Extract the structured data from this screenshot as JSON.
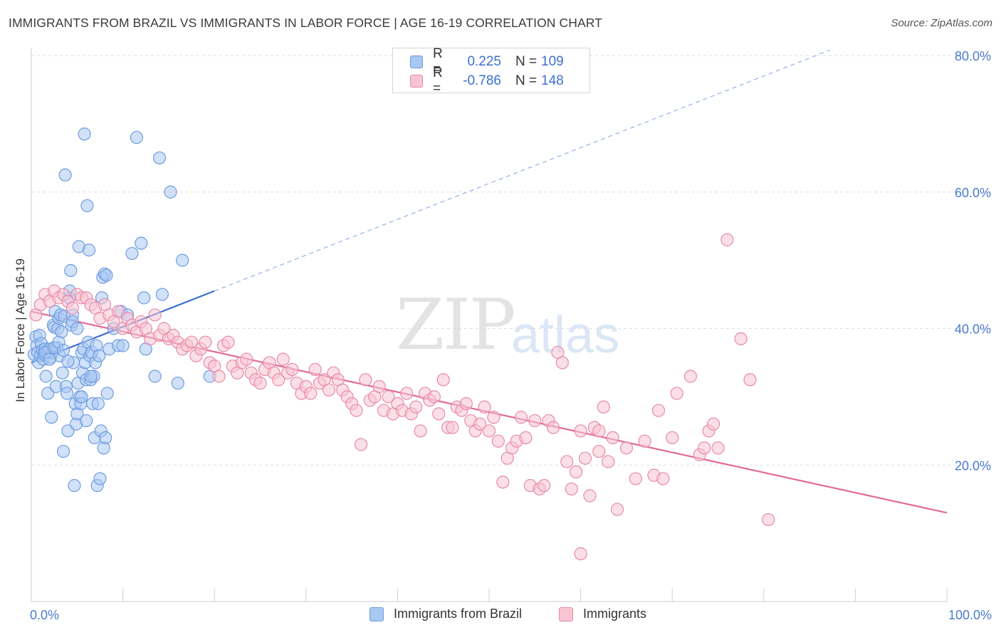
{
  "title": "IMMIGRANTS FROM BRAZIL VS IMMIGRANTS IN LABOR FORCE | AGE 16-19 CORRELATION CHART",
  "source": "Source: ZipAtlas.com",
  "watermark": {
    "zip": "ZIP",
    "atlas": "atlas"
  },
  "legend": {
    "rows": [
      {
        "r_label": "R =",
        "r_value": "0.225",
        "n_label": "N =",
        "n_value": "109",
        "color": "#a9c8f2",
        "border": "#6f9ce0"
      },
      {
        "r_label": "R =",
        "r_value": "-0.786",
        "n_label": "N =",
        "n_value": "148",
        "color": "#f8c4d3",
        "border": "#e88aa7"
      }
    ]
  },
  "bottom_legend": [
    {
      "label": "Immigrants from Brazil",
      "color": "#a9c8f2",
      "border": "#6f9ce0"
    },
    {
      "label": "Immigrants",
      "color": "#f8c4d3",
      "border": "#e88aa7"
    }
  ],
  "chart_data": {
    "type": "scatter",
    "ylabel": "In Labor Force | Age 16-19",
    "xlim": [
      0,
      100
    ],
    "ylim": [
      0,
      80
    ],
    "x_tick_labels": [
      "0.0%",
      "100.0%"
    ],
    "y_ticks": [
      20,
      40,
      60,
      80
    ],
    "y_tick_labels": [
      "20.0%",
      "40.0%",
      "60.0%",
      "80.0%"
    ],
    "grid": true,
    "series": [
      {
        "name": "Immigrants from Brazil",
        "color": "#6f9ce0",
        "fill": "#a9c8f2",
        "trend": {
          "x": [
            0,
            20
          ],
          "y": [
            35.0,
            45.5
          ],
          "dashed_extension_to": [
            100,
            87.0
          ],
          "color": "#3d6fcf"
        },
        "points": [
          [
            0.3,
            36.2
          ],
          [
            0.5,
            38.8
          ],
          [
            0.6,
            37.5
          ],
          [
            0.7,
            36.5
          ],
          [
            0.8,
            35.0
          ],
          [
            0.9,
            39.0
          ],
          [
            1.0,
            36.0
          ],
          [
            1.1,
            37.8
          ],
          [
            1.2,
            36.8
          ],
          [
            1.3,
            35.5
          ],
          [
            1.4,
            36.2
          ],
          [
            1.5,
            37.0
          ],
          [
            1.6,
            33.0
          ],
          [
            1.7,
            36.5
          ],
          [
            1.8,
            30.5
          ],
          [
            1.9,
            36.8
          ],
          [
            2.0,
            37.0
          ],
          [
            2.1,
            35.8
          ],
          [
            2.2,
            27.0
          ],
          [
            2.3,
            36.5
          ],
          [
            2.4,
            40.5
          ],
          [
            2.5,
            40.2
          ],
          [
            2.6,
            42.5
          ],
          [
            2.7,
            31.5
          ],
          [
            2.8,
            37.2
          ],
          [
            2.9,
            40.0
          ],
          [
            3.0,
            41.5
          ],
          [
            3.1,
            36.0
          ],
          [
            3.2,
            42.0
          ],
          [
            3.3,
            39.5
          ],
          [
            3.4,
            33.5
          ],
          [
            3.5,
            22.0
          ],
          [
            3.6,
            41.8
          ],
          [
            3.7,
            62.5
          ],
          [
            3.8,
            31.5
          ],
          [
            3.9,
            30.5
          ],
          [
            4.0,
            25.0
          ],
          [
            4.1,
            44.5
          ],
          [
            4.2,
            45.5
          ],
          [
            4.3,
            48.5
          ],
          [
            4.4,
            40.5
          ],
          [
            4.5,
            42.0
          ],
          [
            4.6,
            35.0
          ],
          [
            4.7,
            17.0
          ],
          [
            4.8,
            29.0
          ],
          [
            4.9,
            26.0
          ],
          [
            5.0,
            27.5
          ],
          [
            5.1,
            32.0
          ],
          [
            5.2,
            52.0
          ],
          [
            5.3,
            30.0
          ],
          [
            5.4,
            29.0
          ],
          [
            5.5,
            36.5
          ],
          [
            5.6,
            33.5
          ],
          [
            5.7,
            37.0
          ],
          [
            5.8,
            68.5
          ],
          [
            5.9,
            35.0
          ],
          [
            6.0,
            32.5
          ],
          [
            6.1,
            58.0
          ],
          [
            6.2,
            38.0
          ],
          [
            6.3,
            51.5
          ],
          [
            6.4,
            36.0
          ],
          [
            6.5,
            32.5
          ],
          [
            6.6,
            36.5
          ],
          [
            6.7,
            29.0
          ],
          [
            6.8,
            33.0
          ],
          [
            6.9,
            24.0
          ],
          [
            7.0,
            35.0
          ],
          [
            7.1,
            37.5
          ],
          [
            7.2,
            17.0
          ],
          [
            7.3,
            29.0
          ],
          [
            7.4,
            36.0
          ],
          [
            7.5,
            18.0
          ],
          [
            7.6,
            25.0
          ],
          [
            7.7,
            44.5
          ],
          [
            7.8,
            47.5
          ],
          [
            7.9,
            22.5
          ],
          [
            8.0,
            48.0
          ],
          [
            8.1,
            24.0
          ],
          [
            8.2,
            47.8
          ],
          [
            8.3,
            30.5
          ],
          [
            8.5,
            37.0
          ],
          [
            9.0,
            40.0
          ],
          [
            9.5,
            37.5
          ],
          [
            9.8,
            42.5
          ],
          [
            10.0,
            37.5
          ],
          [
            10.5,
            42.0
          ],
          [
            11.0,
            51.0
          ],
          [
            11.5,
            68.0
          ],
          [
            12.0,
            52.5
          ],
          [
            12.3,
            44.5
          ],
          [
            12.5,
            37.0
          ],
          [
            13.5,
            33.0
          ],
          [
            14.0,
            65.0
          ],
          [
            14.3,
            45.0
          ],
          [
            15.2,
            60.0
          ],
          [
            16.0,
            32.0
          ],
          [
            16.5,
            50.0
          ],
          [
            19.5,
            33.0
          ],
          [
            1.5,
            36.5
          ],
          [
            2.0,
            35.5
          ],
          [
            2.5,
            37.2
          ],
          [
            3.0,
            38.0
          ],
          [
            3.5,
            36.8
          ],
          [
            4.0,
            35.2
          ],
          [
            4.5,
            41.0
          ],
          [
            5.0,
            40.0
          ],
          [
            5.5,
            30.0
          ],
          [
            6.0,
            26.5
          ],
          [
            6.5,
            33.0
          ]
        ]
      },
      {
        "name": "Immigrants",
        "color": "#e88aa7",
        "fill": "#f8c4d3",
        "trend": {
          "x": [
            0,
            100
          ],
          "y": [
            42.5,
            13.0
          ],
          "color": "#e06a94"
        },
        "points": [
          [
            0.5,
            42.0
          ],
          [
            1.0,
            43.5
          ],
          [
            1.5,
            45.0
          ],
          [
            2.0,
            44.0
          ],
          [
            2.5,
            45.5
          ],
          [
            3.0,
            44.5
          ],
          [
            3.5,
            45.0
          ],
          [
            4.0,
            44.0
          ],
          [
            4.5,
            43.0
          ],
          [
            5.0,
            45.0
          ],
          [
            5.5,
            44.5
          ],
          [
            6.0,
            44.5
          ],
          [
            6.5,
            43.5
          ],
          [
            7.0,
            43.0
          ],
          [
            7.5,
            41.5
          ],
          [
            8.0,
            43.5
          ],
          [
            8.5,
            42.0
          ],
          [
            9.0,
            41.0
          ],
          [
            9.5,
            42.5
          ],
          [
            10.0,
            40.0
          ],
          [
            10.5,
            41.5
          ],
          [
            11.0,
            40.5
          ],
          [
            11.5,
            39.5
          ],
          [
            12.0,
            41.0
          ],
          [
            12.5,
            40.0
          ],
          [
            13.0,
            38.5
          ],
          [
            13.5,
            42.0
          ],
          [
            14.0,
            39.0
          ],
          [
            14.5,
            40.0
          ],
          [
            15.0,
            38.5
          ],
          [
            15.5,
            39.0
          ],
          [
            16.0,
            38.0
          ],
          [
            16.5,
            37.0
          ],
          [
            17.0,
            37.5
          ],
          [
            17.5,
            38.0
          ],
          [
            18.0,
            36.0
          ],
          [
            18.5,
            37.0
          ],
          [
            19.0,
            38.0
          ],
          [
            19.5,
            35.0
          ],
          [
            20.0,
            34.5
          ],
          [
            20.5,
            33.0
          ],
          [
            21.0,
            37.5
          ],
          [
            21.5,
            38.0
          ],
          [
            22.0,
            34.5
          ],
          [
            22.5,
            33.5
          ],
          [
            23.0,
            35.0
          ],
          [
            23.5,
            35.5
          ],
          [
            24.0,
            33.5
          ],
          [
            24.5,
            32.5
          ],
          [
            25.0,
            32.0
          ],
          [
            25.5,
            34.0
          ],
          [
            26.0,
            35.0
          ],
          [
            26.5,
            33.5
          ],
          [
            27.0,
            32.5
          ],
          [
            27.5,
            35.5
          ],
          [
            28.0,
            33.5
          ],
          [
            28.5,
            34.0
          ],
          [
            29.0,
            32.0
          ],
          [
            29.5,
            30.5
          ],
          [
            30.0,
            31.5
          ],
          [
            30.5,
            30.5
          ],
          [
            31.0,
            34.0
          ],
          [
            31.5,
            32.0
          ],
          [
            32.0,
            32.5
          ],
          [
            32.5,
            31.0
          ],
          [
            33.0,
            33.5
          ],
          [
            33.5,
            32.5
          ],
          [
            34.0,
            31.0
          ],
          [
            34.5,
            30.0
          ],
          [
            35.0,
            29.0
          ],
          [
            35.5,
            28.0
          ],
          [
            36.0,
            23.0
          ],
          [
            36.5,
            32.5
          ],
          [
            37.0,
            29.5
          ],
          [
            37.5,
            30.0
          ],
          [
            38.0,
            31.5
          ],
          [
            38.5,
            28.0
          ],
          [
            39.0,
            30.0
          ],
          [
            39.5,
            27.5
          ],
          [
            40.0,
            29.0
          ],
          [
            40.5,
            28.0
          ],
          [
            41.0,
            30.5
          ],
          [
            41.5,
            27.5
          ],
          [
            42.0,
            28.5
          ],
          [
            42.5,
            25.0
          ],
          [
            43.0,
            30.5
          ],
          [
            43.5,
            29.5
          ],
          [
            44.0,
            30.0
          ],
          [
            44.5,
            27.5
          ],
          [
            45.0,
            32.5
          ],
          [
            45.5,
            25.5
          ],
          [
            46.0,
            25.5
          ],
          [
            46.5,
            28.5
          ],
          [
            47.0,
            28.0
          ],
          [
            47.5,
            29.0
          ],
          [
            48.0,
            26.5
          ],
          [
            48.5,
            25.0
          ],
          [
            49.0,
            26.0
          ],
          [
            49.5,
            28.5
          ],
          [
            50.0,
            25.0
          ],
          [
            50.5,
            27.0
          ],
          [
            51.0,
            23.5
          ],
          [
            51.5,
            17.5
          ],
          [
            52.0,
            21.0
          ],
          [
            52.5,
            22.5
          ],
          [
            53.0,
            23.5
          ],
          [
            53.5,
            27.0
          ],
          [
            54.0,
            24.0
          ],
          [
            54.5,
            17.0
          ],
          [
            55.0,
            26.5
          ],
          [
            55.5,
            16.5
          ],
          [
            56.0,
            17.0
          ],
          [
            56.5,
            26.5
          ],
          [
            57.0,
            25.5
          ],
          [
            57.5,
            36.5
          ],
          [
            58.0,
            35.0
          ],
          [
            58.5,
            20.5
          ],
          [
            59.0,
            16.5
          ],
          [
            59.5,
            19.0
          ],
          [
            60.0,
            25.0
          ],
          [
            60.5,
            21.0
          ],
          [
            61.0,
            15.5
          ],
          [
            61.5,
            25.5
          ],
          [
            62.0,
            25.0
          ],
          [
            62.5,
            28.5
          ],
          [
            63.0,
            20.5
          ],
          [
            63.5,
            24.0
          ],
          [
            64.0,
            13.5
          ],
          [
            65.0,
            22.5
          ],
          [
            66.0,
            18.0
          ],
          [
            67.0,
            23.5
          ],
          [
            68.0,
            18.5
          ],
          [
            68.5,
            28.0
          ],
          [
            69.0,
            18.0
          ],
          [
            70.0,
            24.0
          ],
          [
            70.5,
            30.5
          ],
          [
            72.0,
            33.0
          ],
          [
            73.0,
            21.5
          ],
          [
            73.5,
            22.5
          ],
          [
            74.0,
            25.0
          ],
          [
            74.5,
            26.0
          ],
          [
            75.0,
            22.5
          ],
          [
            76.0,
            53.0
          ],
          [
            77.5,
            38.5
          ],
          [
            78.5,
            32.5
          ],
          [
            80.5,
            12.0
          ],
          [
            60.0,
            7.0
          ],
          [
            62.0,
            22.0
          ]
        ]
      }
    ]
  }
}
